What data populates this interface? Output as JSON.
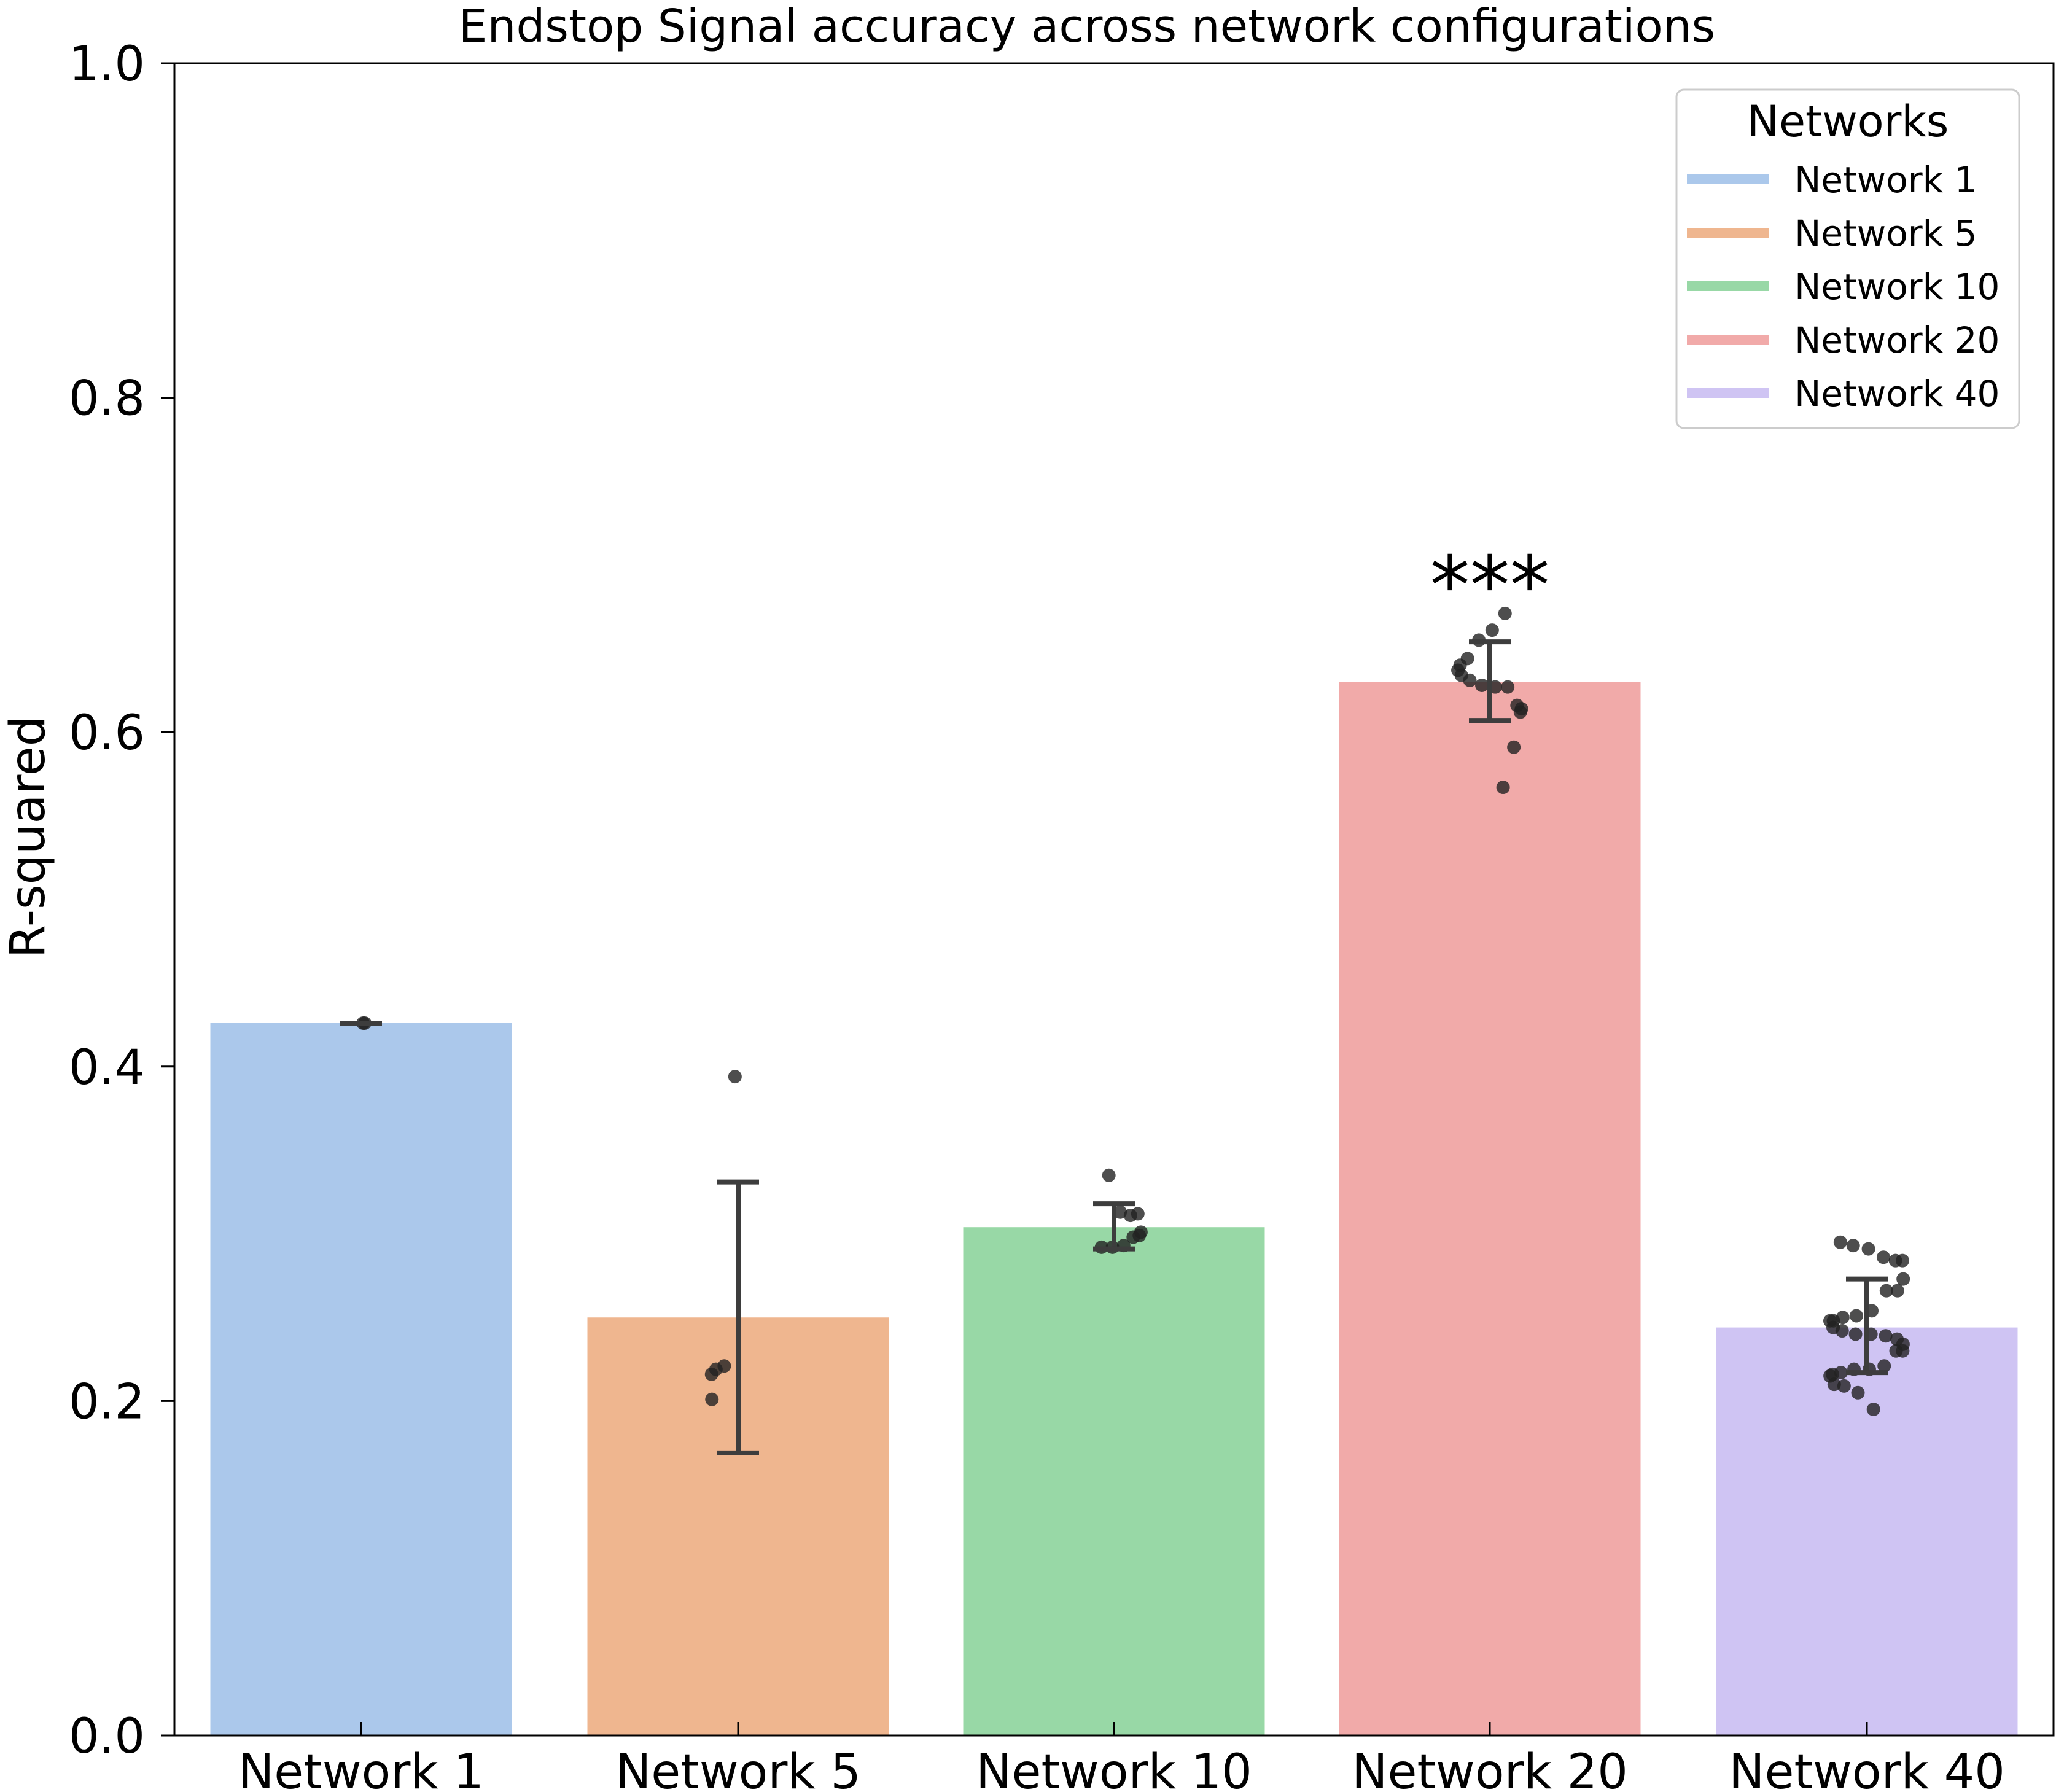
{
  "chart_data": {
    "type": "bar",
    "title": "Endstop Signal accuracy across network configurations",
    "xlabel": "",
    "ylabel": "R-squared",
    "ylim": [
      0.0,
      1.0
    ],
    "yticks": [
      "0.0",
      "0.2",
      "0.4",
      "0.6",
      "0.8",
      "1.0"
    ],
    "grid": false,
    "categories": [
      "Network 1",
      "Network 5",
      "Network 10",
      "Network 20",
      "Network 40"
    ],
    "values": [
      0.426,
      0.25,
      0.304,
      0.63,
      0.244
    ],
    "error": [
      [
        0.426,
        0.426
      ],
      [
        0.169,
        0.331
      ],
      [
        0.291,
        0.318
      ],
      [
        0.607,
        0.654
      ],
      [
        0.217,
        0.273
      ]
    ],
    "colors": [
      "#abc8eb",
      "#efb68f",
      "#98d8a6",
      "#f1aaa9",
      "#cfc4f3"
    ],
    "points": [
      [
        0.426,
        0.426
      ],
      [
        0.394,
        0.221,
        0.219,
        0.216,
        0.201
      ],
      [
        0.335,
        0.313,
        0.311,
        0.312,
        0.301,
        0.299,
        0.298,
        0.293,
        0.292,
        0.292
      ],
      [
        0.671,
        0.661,
        0.655,
        0.644,
        0.64,
        0.637,
        0.634,
        0.631,
        0.628,
        0.627,
        0.627,
        0.616,
        0.614,
        0.612,
        0.591,
        0.567
      ],
      [
        0.295,
        0.293,
        0.291,
        0.286,
        0.284,
        0.284,
        0.273,
        0.266,
        0.266,
        0.254,
        0.251,
        0.25,
        0.248,
        0.248,
        0.244,
        0.242,
        0.24,
        0.24,
        0.239,
        0.237,
        0.234,
        0.23,
        0.23,
        0.221,
        0.219,
        0.219,
        0.217,
        0.216,
        0.215,
        0.21,
        0.209,
        0.205,
        0.195
      ]
    ],
    "annotations": [
      {
        "category": "Network 20",
        "text": "***",
        "y": 0.705
      }
    ],
    "legend": {
      "title": "Networks",
      "placement": "top-right",
      "entries": [
        "Network 1",
        "Network 5",
        "Network 10",
        "Network 20",
        "Network 40"
      ]
    }
  }
}
